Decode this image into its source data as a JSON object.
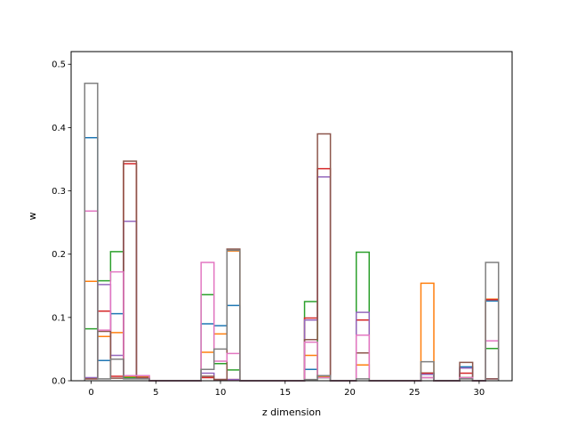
{
  "chart_data": {
    "type": "step",
    "xlabel": "z dimension",
    "ylabel": "w",
    "xlim": [
      -1.55,
      32.55
    ],
    "ylim": [
      0,
      0.52
    ],
    "xticks": [
      0,
      5,
      10,
      15,
      20,
      25,
      30
    ],
    "yticks": [
      0.0,
      0.1,
      0.2,
      0.3,
      0.4,
      0.5
    ],
    "x": [
      0,
      1,
      2,
      3,
      4,
      5,
      6,
      7,
      8,
      9,
      10,
      11,
      12,
      13,
      14,
      15,
      16,
      17,
      18,
      19,
      20,
      21,
      22,
      23,
      24,
      25,
      26,
      27,
      28,
      29,
      30,
      31
    ],
    "series": [
      {
        "color": "#1f77b4",
        "values": [
          0.384,
          0.032,
          0.106,
          0.005,
          0.005,
          0,
          0,
          0,
          0,
          0.09,
          0.087,
          0.119,
          0,
          0,
          0,
          0,
          0,
          0.018,
          0.005,
          0,
          0,
          0.025,
          0,
          0,
          0,
          0,
          0.012,
          0,
          0,
          0.022,
          0,
          0.126
        ]
      },
      {
        "color": "#ff7f0e",
        "values": [
          0.157,
          0.07,
          0.076,
          0.006,
          0.007,
          0,
          0,
          0,
          0,
          0.045,
          0.074,
          0.205,
          0,
          0,
          0,
          0,
          0,
          0.04,
          0.006,
          0,
          0,
          0.025,
          0,
          0,
          0,
          0,
          0.154,
          0,
          0,
          0.005,
          0,
          0.129
        ]
      },
      {
        "color": "#2ca02c",
        "values": [
          0.082,
          0.158,
          0.204,
          0.005,
          0.005,
          0,
          0,
          0,
          0,
          0.136,
          0.027,
          0.017,
          0,
          0,
          0,
          0,
          0,
          0.125,
          0.005,
          0,
          0,
          0.203,
          0,
          0,
          0,
          0,
          0.012,
          0,
          0,
          0.005,
          0,
          0.051
        ]
      },
      {
        "color": "#d62728",
        "values": [
          0.003,
          0.11,
          0.007,
          0.343,
          0.005,
          0,
          0,
          0,
          0,
          0.005,
          0.002,
          0.002,
          0,
          0,
          0,
          0,
          0,
          0.099,
          0.335,
          0,
          0,
          0.096,
          0,
          0,
          0,
          0,
          0.012,
          0,
          0,
          0.012,
          0,
          0.128
        ]
      },
      {
        "color": "#9467bd",
        "values": [
          0.005,
          0.152,
          0.04,
          0.252,
          0.004,
          0,
          0,
          0,
          0,
          0.012,
          0.002,
          0.002,
          0,
          0,
          0,
          0,
          0,
          0.096,
          0.322,
          0,
          0,
          0.108,
          0,
          0,
          0,
          0,
          0.01,
          0,
          0,
          0.02,
          0,
          0.003
        ]
      },
      {
        "color": "#8c564b",
        "values": [
          0.003,
          0.078,
          0.004,
          0.347,
          0.004,
          0,
          0,
          0,
          0,
          0.007,
          0.002,
          0.208,
          0,
          0,
          0,
          0,
          0,
          0.065,
          0.39,
          0,
          0,
          0.044,
          0,
          0,
          0,
          0,
          0.005,
          0,
          0,
          0.029,
          0,
          0.003
        ]
      },
      {
        "color": "#e377c2",
        "values": [
          0.268,
          0.08,
          0.172,
          0.008,
          0.008,
          0,
          0,
          0,
          0,
          0.187,
          0.031,
          0.043,
          0,
          0,
          0,
          0,
          0,
          0.061,
          0.005,
          0,
          0,
          0.072,
          0,
          0,
          0,
          0,
          0.005,
          0,
          0,
          0.005,
          0,
          0.063
        ]
      },
      {
        "color": "#7f7f7f",
        "values": [
          0.47,
          0.003,
          0.034,
          0.003,
          0.003,
          0,
          0,
          0,
          0,
          0.018,
          0.05,
          0.206,
          0,
          0,
          0,
          0,
          0,
          0.002,
          0.008,
          0,
          0,
          0.003,
          0,
          0,
          0,
          0,
          0.03,
          0,
          0,
          0.003,
          0,
          0.187
        ]
      }
    ]
  }
}
